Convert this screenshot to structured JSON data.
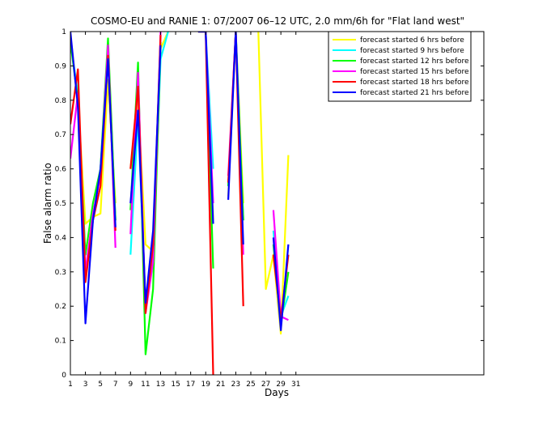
{
  "chart_data": {
    "type": "line",
    "title": "COSMO-EU and RANIE 1: 07/2007 06–12 UTC, 2.0 mm/6h for \"Flat land west\"",
    "xlabel": "Days",
    "ylabel": "False alarm ratio",
    "xlim": [
      1,
      56
    ],
    "ylim": [
      0,
      1
    ],
    "xticks": [
      1,
      3,
      5,
      7,
      9,
      11,
      13,
      15,
      17,
      19,
      21,
      23,
      25,
      27,
      29,
      31
    ],
    "yticks": [
      0,
      0.1,
      0.2,
      0.3,
      0.4,
      0.5,
      0.6,
      0.7,
      0.8,
      0.9,
      1
    ],
    "ytick_labels": [
      "0",
      "0.1",
      "0.2",
      "0.3",
      "0.4",
      "0.5",
      "0.6",
      "0.7",
      "0.8",
      "0.9",
      "1"
    ],
    "grid": false,
    "legend_position": "top-right",
    "series": [
      {
        "name": "forecast started 6 hrs before",
        "color": "#ffff00",
        "points": [
          [
            1,
            0.99
          ],
          [
            2,
            0.8
          ],
          [
            3,
            0.44
          ],
          [
            4,
            0.46
          ],
          [
            5,
            0.47
          ],
          [
            6,
            0.86
          ],
          [
            7,
            0.5
          ],
          null,
          [
            9,
            0.6
          ],
          [
            10,
            0.8
          ],
          [
            11,
            0.38
          ],
          [
            12,
            0.36
          ],
          [
            13,
            0.95
          ],
          [
            14,
            1
          ],
          null,
          [
            18,
            1
          ],
          [
            19,
            1
          ],
          [
            20,
            0.45
          ],
          null,
          [
            22,
            0.52
          ],
          [
            23,
            1
          ],
          [
            24,
            0.5
          ],
          null,
          [
            26,
            1
          ],
          [
            27,
            0.25
          ],
          [
            28,
            0.35
          ],
          [
            29,
            0.12
          ],
          [
            30,
            0.64
          ]
        ]
      },
      {
        "name": "forecast started 9 hrs before",
        "color": "#00ffff",
        "points": [
          [
            1,
            0.97
          ],
          [
            2,
            0.82
          ],
          [
            3,
            0.3
          ],
          [
            4,
            0.45
          ],
          [
            5,
            0.6
          ],
          [
            6,
            0.95
          ],
          [
            7,
            0.45
          ],
          null,
          [
            9,
            0.35
          ],
          [
            10,
            0.75
          ],
          [
            11,
            0.2
          ],
          [
            12,
            0.35
          ],
          [
            13,
            0.92
          ],
          [
            14,
            1
          ],
          null,
          [
            18,
            1
          ],
          [
            19,
            1
          ],
          [
            20,
            0.6
          ],
          null,
          [
            22,
            0.55
          ],
          [
            23,
            1
          ],
          [
            24,
            0.45
          ],
          null,
          [
            28,
            0.42
          ],
          [
            29,
            0.17
          ],
          [
            30,
            0.23
          ]
        ]
      },
      {
        "name": "forecast started 12 hrs before",
        "color": "#00ff00",
        "points": [
          [
            1,
            0.97
          ],
          [
            2,
            0.8
          ],
          [
            3,
            0.35
          ],
          [
            4,
            0.5
          ],
          [
            5,
            0.6
          ],
          [
            6,
            0.98
          ],
          [
            7,
            0.45
          ],
          null,
          [
            9,
            0.48
          ],
          [
            10,
            0.91
          ],
          [
            11,
            0.06
          ],
          [
            12,
            0.25
          ],
          [
            13,
            0.97
          ],
          null,
          [
            18,
            1
          ],
          [
            19,
            1
          ],
          [
            20,
            0.31
          ],
          null,
          [
            22,
            0.55
          ],
          [
            23,
            1
          ],
          [
            24,
            0.45
          ],
          null,
          [
            28,
            0.38
          ],
          [
            29,
            0.15
          ],
          [
            30,
            0.3
          ]
        ]
      },
      {
        "name": "forecast started 15 hrs before",
        "color": "#ff00ff",
        "points": [
          [
            1,
            0.63
          ],
          [
            2,
            0.82
          ],
          [
            3,
            0.3
          ],
          [
            4,
            0.47
          ],
          [
            5,
            0.58
          ],
          [
            6,
            0.96
          ],
          [
            7,
            0.37
          ],
          null,
          [
            9,
            0.41
          ],
          [
            10,
            0.88
          ],
          [
            11,
            0.18
          ],
          [
            12,
            0.33
          ],
          [
            13,
            1
          ],
          null,
          [
            18,
            1
          ],
          [
            19,
            1
          ],
          [
            20,
            0.5
          ],
          null,
          [
            22,
            0.58
          ],
          [
            23,
            1
          ],
          [
            24,
            0.35
          ],
          null,
          [
            28,
            0.48
          ],
          [
            29,
            0.17
          ],
          [
            30,
            0.16
          ]
        ]
      },
      {
        "name": "forecast started 18 hrs before",
        "color": "#ff0000",
        "points": [
          [
            1,
            0.73
          ],
          [
            2,
            0.89
          ],
          [
            3,
            0.27
          ],
          [
            4,
            0.45
          ],
          [
            5,
            0.55
          ],
          [
            6,
            0.93
          ],
          [
            7,
            0.42
          ],
          null,
          [
            9,
            0.6
          ],
          [
            10,
            0.84
          ],
          [
            11,
            0.18
          ],
          [
            12,
            0.38
          ],
          [
            13,
            0.99
          ],
          null,
          [
            18,
            1
          ],
          [
            19,
            1
          ],
          [
            20,
            0
          ],
          null,
          [
            22,
            0.56
          ],
          [
            23,
            1
          ],
          [
            24,
            0.2
          ],
          null,
          [
            28,
            0.35
          ],
          [
            29,
            0.16
          ],
          [
            30,
            0.35
          ]
        ]
      },
      {
        "name": "forecast started 21 hrs before",
        "color": "#0000ff",
        "points": [
          [
            1,
            1
          ],
          [
            2,
            0.78
          ],
          [
            3,
            0.15
          ],
          [
            4,
            0.45
          ],
          [
            5,
            0.6
          ],
          [
            6,
            0.92
          ],
          [
            7,
            0.43
          ],
          null,
          [
            9,
            0.5
          ],
          [
            10,
            0.77
          ],
          [
            11,
            0.21
          ],
          [
            12,
            0.42
          ],
          [
            13,
            0.96
          ],
          null,
          [
            18,
            1
          ],
          [
            19,
            1
          ],
          [
            20,
            0.44
          ],
          null,
          [
            22,
            0.51
          ],
          [
            23,
            1
          ],
          [
            24,
            0.38
          ],
          null,
          [
            28,
            0.4
          ],
          [
            29,
            0.13
          ],
          [
            30,
            0.38
          ]
        ]
      }
    ]
  }
}
